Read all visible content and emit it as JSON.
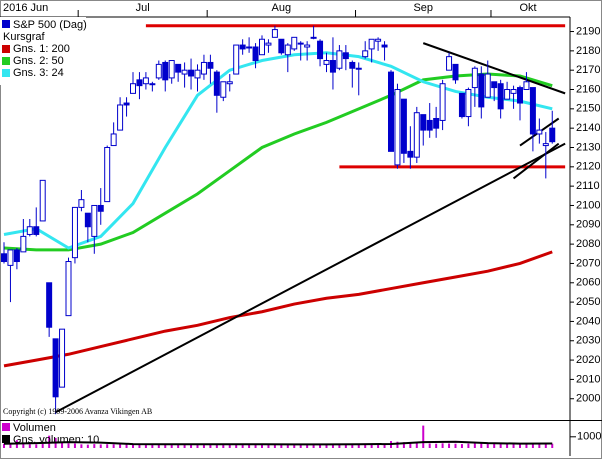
{
  "chart_data": [
    {
      "type": "candlestick",
      "name": "S&P 500 (Dag)",
      "color": "#0000cc",
      "legend_heading": "Kursgraf",
      "months": [
        "2016 Jun",
        "Jul",
        "Aug",
        "Sep",
        "Okt"
      ],
      "xticks": [
        12,
        32,
        55,
        76
      ],
      "open": [
        2075,
        2069,
        2077,
        2076,
        2085,
        2089,
        2092,
        2060,
        2031,
        2006,
        2043,
        2073,
        2099,
        2096,
        2084,
        2100,
        2102,
        2131,
        2139,
        2153,
        2158,
        2165,
        2163,
        2163,
        2166,
        2174,
        2166,
        2173,
        2168,
        2170,
        2166,
        2168,
        2174,
        2169,
        2156,
        2163,
        2168,
        2183,
        2182,
        2182,
        2178,
        2183,
        2187,
        2186,
        2178,
        2181,
        2184,
        2182,
        2187,
        2185,
        2173,
        2175,
        2171,
        2179,
        2174,
        2171,
        2177,
        2181,
        2185,
        2183,
        2169,
        2121,
        2155,
        2128,
        2125,
        2147,
        2144,
        2145,
        2144,
        2170,
        2173,
        2158,
        2146,
        2161,
        2168,
        2156,
        2164,
        2163,
        2155,
        2158,
        2161,
        2160,
        2161,
        2137,
        2131,
        2140
      ],
      "high": [
        2081,
        2077,
        2078,
        2093,
        2093,
        2099,
        2113,
        2060,
        2031,
        2036,
        2073,
        2099,
        2108,
        2096,
        2100,
        2109,
        2131,
        2143,
        2156,
        2156,
        2169,
        2169,
        2169,
        2164,
        2175,
        2175,
        2175,
        2173,
        2174,
        2176,
        2173,
        2178,
        2178,
        2170,
        2164,
        2168,
        2183,
        2186,
        2187,
        2184,
        2188,
        2186,
        2193,
        2186,
        2184,
        2187,
        2185,
        2185,
        2193,
        2186,
        2179,
        2187,
        2183,
        2183,
        2175,
        2174,
        2185,
        2186,
        2187,
        2185,
        2170,
        2163,
        2155,
        2141,
        2151,
        2147,
        2153,
        2151,
        2165,
        2179,
        2173,
        2158,
        2161,
        2172,
        2172,
        2175,
        2164,
        2165,
        2164,
        2162,
        2162,
        2169,
        2161,
        2145,
        2138,
        2149
      ],
      "low": [
        2070,
        2050,
        2067,
        2076,
        2084,
        2084,
        2092,
        2032,
        1992,
        2006,
        2043,
        2070,
        2097,
        2081,
        2075,
        2090,
        2102,
        2131,
        2139,
        2146,
        2158,
        2155,
        2160,
        2159,
        2165,
        2159,
        2163,
        2164,
        2161,
        2160,
        2159,
        2165,
        2163,
        2148,
        2154,
        2159,
        2168,
        2178,
        2179,
        2171,
        2178,
        2179,
        2187,
        2178,
        2169,
        2180,
        2175,
        2175,
        2186,
        2172,
        2169,
        2160,
        2170,
        2170,
        2161,
        2157,
        2176,
        2174,
        2180,
        2175,
        2128,
        2119,
        2122,
        2119,
        2122,
        2131,
        2135,
        2135,
        2139,
        2170,
        2163,
        2145,
        2141,
        2151,
        2145,
        2156,
        2154,
        2145,
        2155,
        2150,
        2144,
        2160,
        2128,
        2132,
        2114,
        2132
      ],
      "close": [
        2071,
        2077,
        2071,
        2084,
        2089,
        2085,
        2113,
        2037,
        2001,
        2036,
        2071,
        2099,
        2103,
        2089,
        2100,
        2097,
        2130,
        2137,
        2152,
        2152,
        2163,
        2162,
        2166,
        2163,
        2173,
        2165,
        2175,
        2169,
        2170,
        2167,
        2170,
        2174,
        2171,
        2157,
        2164,
        2164,
        2183,
        2181,
        2182,
        2175,
        2186,
        2184,
        2191,
        2179,
        2183,
        2187,
        2184,
        2183,
        2187,
        2176,
        2175,
        2169,
        2180,
        2176,
        2171,
        2171,
        2180,
        2186,
        2186,
        2182,
        2128,
        2160,
        2127,
        2125,
        2148,
        2139,
        2139,
        2140,
        2163,
        2177,
        2165,
        2146,
        2160,
        2171,
        2151,
        2168,
        2161,
        2150,
        2160,
        2160,
        2153,
        2164,
        2137,
        2139,
        2132,
        2133
      ],
      "series": [
        {
          "name": "Gns. 1: 200",
          "color": "#cc0000",
          "x": [
            0,
            5,
            10,
            15,
            20,
            25,
            30,
            35,
            40,
            45,
            50,
            55,
            60,
            65,
            70,
            75,
            80,
            85
          ],
          "values": [
            2017,
            2020,
            2023,
            2027,
            2031,
            2035,
            2038,
            2042,
            2045,
            2049,
            2052,
            2054,
            2057,
            2060,
            2063,
            2066,
            2070,
            2076
          ]
        },
        {
          "name": "Gns. 2: 50",
          "color": "#22cc22",
          "x": [
            0,
            5,
            10,
            15,
            20,
            25,
            30,
            35,
            40,
            45,
            50,
            55,
            60,
            65,
            70,
            75,
            80,
            85
          ],
          "values": [
            2078,
            2077,
            2077,
            2080,
            2086,
            2096,
            2106,
            2118,
            2130,
            2137,
            2143,
            2150,
            2157,
            2165,
            2167,
            2168,
            2167,
            2162
          ]
        },
        {
          "name": "Gns. 3: 24",
          "color": "#33e6f0",
          "x": [
            0,
            5,
            10,
            15,
            20,
            25,
            30,
            35,
            40,
            45,
            50,
            55,
            60,
            65,
            70,
            75,
            80,
            85
          ],
          "values": [
            2085,
            2088,
            2078,
            2084,
            2101,
            2130,
            2157,
            2170,
            2175,
            2178,
            2179,
            2177,
            2172,
            2164,
            2159,
            2156,
            2154,
            2150
          ]
        }
      ],
      "trendlines": [
        {
          "color": "#dd0000",
          "x": [
            22,
            87
          ],
          "values": [
            2193,
            2193
          ]
        },
        {
          "color": "#dd0000",
          "x": [
            52,
            87
          ],
          "values": [
            2120,
            2120
          ]
        },
        {
          "color": "#000000",
          "x": [
            8,
            87
          ],
          "values": [
            1993,
            2132
          ]
        },
        {
          "color": "#000000",
          "x": [
            65,
            87
          ],
          "values": [
            2184,
            2158
          ]
        },
        {
          "color": "#000000",
          "x": [
            79,
            86
          ],
          "values": [
            2114,
            2132
          ]
        },
        {
          "color": "#000000",
          "x": [
            80,
            86
          ],
          "values": [
            2131,
            2145
          ]
        }
      ],
      "ylim": [
        1989,
        2197
      ],
      "yticks": [
        2000,
        2010,
        2020,
        2030,
        2040,
        2050,
        2060,
        2070,
        2080,
        2090,
        2100,
        2110,
        2120,
        2130,
        2140,
        2150,
        2160,
        2170,
        2180,
        2190
      ],
      "copyright": "Copyright (c) 1999-2006 Avanza Vikingen AB"
    },
    {
      "type": "bar",
      "name": "Volumen",
      "color": "#cc00cc",
      "values": [
        380,
        420,
        700,
        360,
        340,
        330,
        360,
        1100,
        900,
        450,
        420,
        400,
        330,
        300,
        350,
        320,
        340,
        330,
        360,
        340,
        350,
        380,
        320,
        300,
        330,
        340,
        310,
        300,
        330,
        340,
        320,
        360,
        330,
        380,
        350,
        330,
        340,
        300,
        310,
        320,
        330,
        300,
        310,
        330,
        340,
        320,
        300,
        290,
        300,
        340,
        320,
        380,
        300,
        320,
        340,
        350,
        300,
        320,
        330,
        310,
        620,
        560,
        520,
        480,
        470,
        2000,
        400,
        380,
        420,
        400,
        380,
        350,
        390,
        400,
        430,
        440,
        360,
        380,
        370,
        360,
        390,
        340,
        430,
        420,
        450,
        380
      ],
      "series": [
        {
          "name": "Gns. volumen: 10",
          "color": "#000000",
          "x": [
            0,
            5,
            10,
            15,
            20,
            25,
            30,
            35,
            40,
            45,
            50,
            55,
            60,
            65,
            70,
            75,
            80,
            85
          ],
          "values": [
            380,
            430,
            520,
            480,
            350,
            340,
            330,
            340,
            330,
            320,
            320,
            330,
            360,
            520,
            560,
            440,
            390,
            400
          ]
        }
      ],
      "ylim": [
        0,
        2500
      ],
      "yticks": [
        {
          "value": 1000,
          "label": "1000\""
        }
      ]
    }
  ]
}
